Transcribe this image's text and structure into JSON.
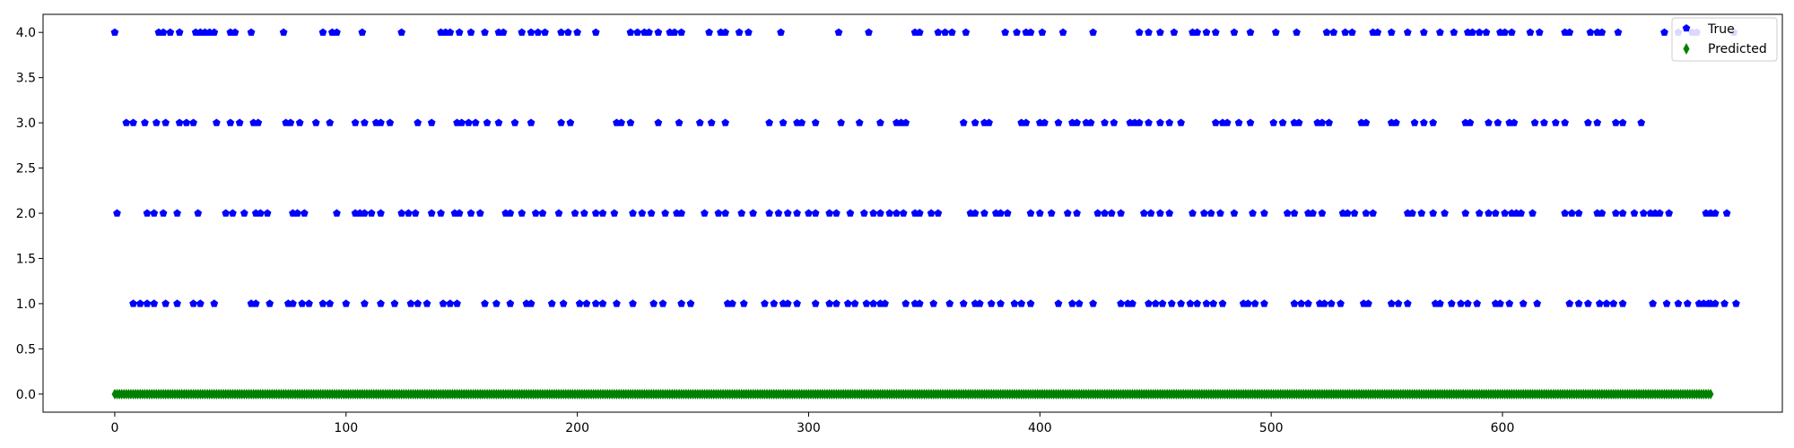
{
  "chart_data": {
    "type": "scatter",
    "title": "",
    "xlabel": "",
    "ylabel": "",
    "xlim": [
      -31,
      721
    ],
    "ylim": [
      -0.2,
      4.2
    ],
    "x_ticks": [
      0,
      100,
      200,
      300,
      400,
      500,
      600
    ],
    "x_tick_labels": [
      "0",
      "100",
      "200",
      "300",
      "400",
      "500",
      "600"
    ],
    "y_ticks": [
      0.0,
      0.5,
      1.0,
      1.5,
      2.0,
      2.5,
      3.0,
      3.5,
      4.0
    ],
    "y_tick_labels": [
      "0.0",
      "0.5",
      "1.0",
      "1.5",
      "2.0",
      "2.5",
      "3.0",
      "3.5",
      "4.0"
    ],
    "grid": false,
    "legend_position": "top-right",
    "n_points": 611,
    "series": [
      {
        "name": "True",
        "marker": "pentagon",
        "color": "#0000ff",
        "classes": [
          {
            "y": 4,
            "x": [
              0,
              19,
              21,
              24,
              28,
              35,
              37,
              39,
              41,
              43,
              50,
              52,
              59,
              73,
              90,
              94,
              96,
              107,
              124,
              141,
              143,
              145,
              149,
              154,
              160,
              166,
              168,
              176,
              180,
              183,
              186,
              193,
              196,
              200,
              208,
              223,
              226,
              229,
              231,
              235,
              240,
              242,
              245,
              257,
              262,
              264,
              270,
              274,
              288,
              313,
              326,
              346,
              348,
              356,
              359,
              362,
              368,
              385,
              390,
              394,
              396,
              401,
              410,
              423,
              443,
              447,
              452,
              458,
              466,
              468,
              472,
              476,
              484,
              491,
              502,
              511,
              524,
              527,
              532,
              535,
              544,
              546,
              552,
              559,
              566,
              573,
              579,
              585,
              587,
              590,
              593,
              599,
              601,
              604,
              612,
              616,
              627,
              629,
              638,
              641,
              643,
              650,
              670,
              676,
              682,
              684,
              700
            ]
          },
          {
            "y": 3,
            "x": [
              5,
              8,
              13,
              18,
              22,
              28,
              31,
              34,
              44,
              50,
              54,
              60,
              62,
              74,
              76,
              80,
              87,
              93,
              104,
              108,
              113,
              115,
              119,
              131,
              137,
              148,
              150,
              153,
              156,
              161,
              166,
              173,
              180,
              193,
              197,
              217,
              219,
              223,
              235,
              244,
              253,
              258,
              264,
              283,
              289,
              295,
              297,
              303,
              314,
              322,
              331,
              338,
              340,
              342,
              367,
              372,
              376,
              378,
              392,
              394,
              400,
              402,
              408,
              414,
              416,
              420,
              422,
              428,
              432,
              439,
              441,
              443,
              447,
              452,
              456,
              461,
              476,
              479,
              481,
              486,
              491,
              501,
              505,
              510,
              512,
              520,
              522,
              525,
              539,
              541,
              552,
              554,
              562,
              566,
              570,
              584,
              586,
              594,
              598,
              603,
              605,
              614,
              618,
              623,
              627,
              637,
              641,
              649,
              652,
              660
            ]
          },
          {
            "y": 2,
            "x": [
              1,
              14,
              17,
              21,
              27,
              36,
              48,
              51,
              56,
              61,
              63,
              66,
              77,
              79,
              82,
              96,
              104,
              106,
              108,
              111,
              115,
              124,
              127,
              130,
              137,
              141,
              147,
              149,
              154,
              158,
              169,
              171,
              176,
              182,
              185,
              192,
              199,
              203,
              208,
              211,
              216,
              224,
              228,
              232,
              238,
              243,
              245,
              255,
              261,
              264,
              271,
              276,
              283,
              287,
              291,
              295,
              300,
              303,
              309,
              312,
              318,
              324,
              328,
              331,
              335,
              338,
              341,
              346,
              348,
              353,
              356,
              370,
              372,
              376,
              381,
              383,
              386,
              396,
              400,
              405,
              412,
              416,
              425,
              428,
              431,
              435,
              445,
              448,
              452,
              456,
              466,
              471,
              474,
              478,
              484,
              492,
              497,
              507,
              510,
              516,
              518,
              522,
              531,
              533,
              536,
              541,
              544,
              559,
              561,
              565,
              570,
              575,
              584,
              590,
              594,
              597,
              601,
              604,
              606,
              608,
              613,
              627,
              630,
              633,
              641,
              643,
              649,
              652,
              657,
              661,
              664,
              666,
              668,
              672,
              688,
              690,
              692,
              697
            ]
          },
          {
            "y": 1,
            "x": [
              8,
              11,
              14,
              17,
              22,
              27,
              34,
              37,
              43,
              59,
              61,
              67,
              75,
              77,
              81,
              84,
              90,
              93,
              100,
              108,
              115,
              121,
              128,
              131,
              135,
              142,
              145,
              148,
              160,
              165,
              171,
              178,
              180,
              189,
              194,
              201,
              204,
              208,
              211,
              217,
              224,
              233,
              237,
              245,
              249,
              265,
              267,
              272,
              281,
              285,
              289,
              291,
              295,
              303,
              309,
              312,
              317,
              320,
              325,
              328,
              331,
              333,
              342,
              346,
              348,
              354,
              361,
              367,
              372,
              374,
              379,
              383,
              389,
              392,
              396,
              408,
              414,
              417,
              423,
              435,
              438,
              440,
              447,
              450,
              453,
              457,
              461,
              465,
              468,
              472,
              475,
              479,
              488,
              490,
              493,
              497,
              510,
              513,
              516,
              521,
              523,
              526,
              530,
              540,
              542,
              552,
              555,
              559,
              571,
              573,
              578,
              582,
              585,
              589,
              597,
              599,
              603,
              609,
              615,
              629,
              633,
              637,
              642,
              645,
              648,
              652,
              665,
              671,
              676,
              680,
              685,
              687,
              689,
              690,
              692,
              696,
              701
            ]
          }
        ]
      },
      {
        "name": "Predicted",
        "marker": "thin-diamond",
        "color": "#008000",
        "constant_value": 0,
        "x_range": [
          0,
          690
        ]
      }
    ]
  }
}
